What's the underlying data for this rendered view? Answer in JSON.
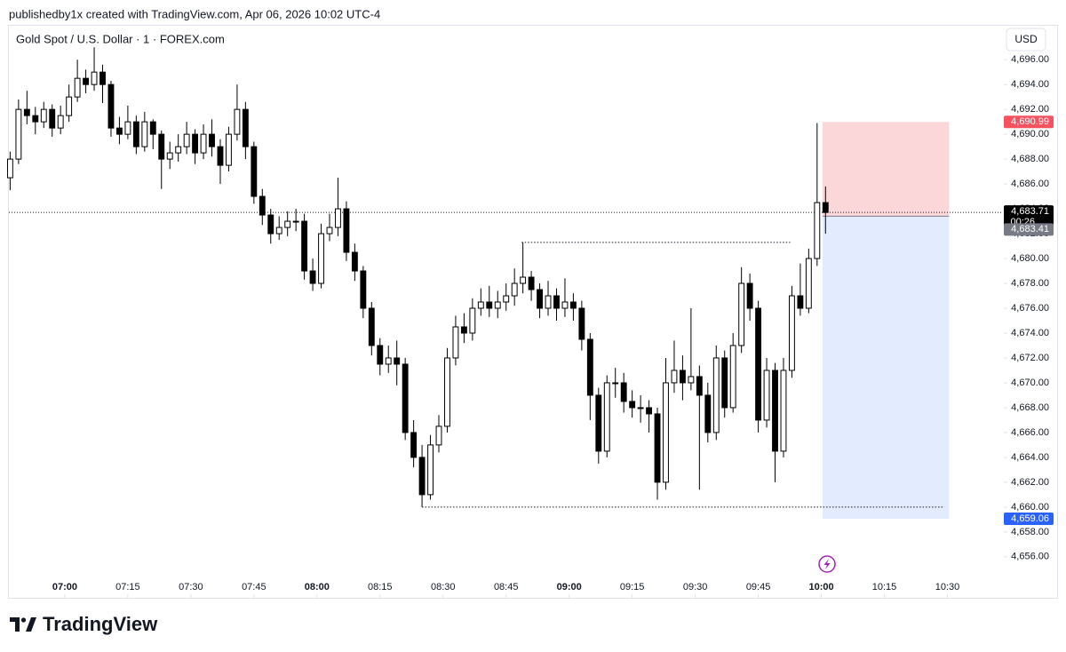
{
  "header": "publishedby1x created with TradingView.com, Apr 06, 2026 10:02 UTC-4",
  "brand": "TradingView",
  "chart_data": {
    "type": "candlestick",
    "title": "Gold Spot / U.S. Dollar · 1 · FOREX.com",
    "currency": "USD",
    "up_color": "#ffffff",
    "down_color": "#000000",
    "wick_color": "#000000",
    "x": [
      407,
      409,
      411,
      413,
      415,
      417,
      419,
      421,
      423,
      425,
      427,
      429,
      431,
      433,
      435,
      437,
      439,
      441,
      443,
      445,
      447,
      449,
      451,
      453,
      455,
      457,
      459,
      461,
      463,
      465,
      467,
      469,
      471,
      473,
      475,
      477,
      479,
      481,
      483,
      485,
      487,
      489,
      491,
      493,
      495,
      497,
      499,
      501,
      503,
      505,
      507,
      509,
      511,
      513,
      515,
      517,
      519,
      521,
      523,
      525,
      527,
      529,
      531,
      533,
      535,
      537,
      539,
      541,
      543,
      545,
      547,
      549,
      551,
      553,
      555,
      557,
      559,
      561,
      563,
      565,
      567,
      569,
      571,
      573,
      575,
      577,
      579,
      581,
      583,
      585,
      587,
      589,
      591,
      593,
      595,
      597,
      599,
      601
    ],
    "open": [
      4686.5,
      4688,
      4692,
      4691.5,
      4691,
      4692,
      4690.5,
      4691.5,
      4693,
      4694.5,
      4694,
      4695,
      4694,
      4690.5,
      4690,
      4691,
      4689,
      4691,
      4690,
      4688,
      4688.5,
      4689,
      4690,
      4688.5,
      4690,
      4689,
      4687.5,
      4690,
      4692,
      4689,
      4685,
      4683.5,
      4682,
      4682.5,
      4683,
      4683,
      4679,
      4678,
      4682,
      4682.5,
      4684,
      4680.5,
      4679,
      4676,
      4673,
      4671.5,
      4672,
      4671.5,
      4666,
      4664,
      4661,
      4665,
      4666.5,
      4672,
      4674.5,
      4674,
      4676,
      4676.5,
      4676,
      4676.5,
      4677,
      4678,
      4678.5,
      4677.5,
      4676,
      4677,
      4676,
      4676.5,
      4676,
      4673.5,
      4669,
      4664.5,
      4670,
      4670,
      4668.5,
      4668,
      4668,
      4667.5,
      4662,
      4670,
      4671,
      4670,
      4670.5,
      4669,
      4666,
      4672,
      4668,
      4673,
      4678,
      4676,
      4667,
      4671,
      4664.5,
      4671,
      4677,
      4676,
      4680,
      4684.5
    ],
    "high": [
      4688.6,
      4692.8,
      4693.5,
      4692.2,
      4692.6,
      4692.4,
      4692.3,
      4694,
      4696,
      4695.2,
      4697,
      4695.6,
      4694.3,
      4691.4,
      4692.3,
      4691.5,
      4691.8,
      4691.2,
      4690.3,
      4689.4,
      4690,
      4691,
      4690.4,
      4690.8,
      4691.2,
      4689.6,
      4690.6,
      4694,
      4692.6,
      4689.4,
      4685.6,
      4684,
      4683.4,
      4683.8,
      4684,
      4683.6,
      4680,
      4682.8,
      4683.6,
      4686.5,
      4684.6,
      4681.2,
      4679.4,
      4676.5,
      4673.6,
      4673,
      4673.4,
      4672,
      4667,
      4665,
      4665.8,
      4667.4,
      4672.8,
      4675.4,
      4675.6,
      4676.8,
      4677.6,
      4677.8,
      4677.4,
      4678,
      4679.2,
      4681.3,
      4679,
      4678,
      4678.2,
      4677.6,
      4678.4,
      4677.2,
      4676.6,
      4674,
      4669.6,
      4670.6,
      4671.2,
      4670.8,
      4669.4,
      4669,
      4668.6,
      4668,
      4672,
      4673.4,
      4672.2,
      4676,
      4671.4,
      4670,
      4673,
      4672.6,
      4674,
      4679.3,
      4678.8,
      4676.6,
      4672,
      4671.6,
      4672,
      4677.8,
      4679.6,
      4680.8,
      4690.9,
      4685.8
    ],
    "low": [
      4685.5,
      4687.6,
      4690.8,
      4690,
      4690.5,
      4689.8,
      4690,
      4691,
      4692.6,
      4693.3,
      4693.5,
      4692.5,
      4689.8,
      4689.2,
      4689.6,
      4688.4,
      4688.6,
      4688.8,
      4685.6,
      4687.2,
      4687.8,
      4688.4,
      4687.6,
      4688,
      4688.2,
      4686,
      4687,
      4689.5,
      4688,
      4684.4,
      4682.7,
      4681.2,
      4681.5,
      4681.8,
      4682.2,
      4678.3,
      4677.4,
      4677.6,
      4681.4,
      4681.8,
      4679.8,
      4678.2,
      4675.2,
      4672.2,
      4670.6,
      4670.8,
      4669.8,
      4665.4,
      4663.2,
      4660,
      4660.6,
      4664.4,
      4666,
      4671.4,
      4673.2,
      4673.4,
      4675.4,
      4675.3,
      4675.2,
      4675.8,
      4676.2,
      4677.2,
      4676.6,
      4675.2,
      4675.4,
      4675,
      4675.3,
      4675,
      4672.6,
      4667,
      4663.5,
      4664,
      4668.8,
      4667.6,
      4667.2,
      4666.8,
      4666,
      4660.6,
      4661.4,
      4669.2,
      4668.6,
      4669.4,
      4661.4,
      4665.2,
      4665.4,
      4667.2,
      4667.6,
      4672.4,
      4675,
      4666,
      4666.4,
      4662,
      4664,
      4670.4,
      4675.4,
      4675.6,
      4679.4,
      4682
    ],
    "close": [
      4688,
      4692,
      4691.5,
      4691,
      4692,
      4690.5,
      4691.5,
      4693,
      4694.5,
      4694,
      4695,
      4694,
      4690.5,
      4690,
      4691,
      4689,
      4691,
      4690,
      4688,
      4688.5,
      4689,
      4690,
      4688.5,
      4690,
      4689,
      4687.5,
      4690,
      4692,
      4689,
      4685,
      4683.5,
      4682,
      4682.5,
      4683,
      4683,
      4679,
      4678,
      4682,
      4682.5,
      4684,
      4680.5,
      4679,
      4676,
      4673,
      4671.5,
      4672,
      4671.5,
      4666,
      4664,
      4661,
      4665,
      4666.5,
      4672,
      4674.5,
      4674,
      4676,
      4676.5,
      4676,
      4676.5,
      4677,
      4678,
      4678.5,
      4677.5,
      4676,
      4677,
      4676,
      4676.5,
      4676,
      4673.5,
      4669,
      4664.5,
      4670,
      4670,
      4668.5,
      4668,
      4668,
      4667.5,
      4662,
      4670,
      4671,
      4670,
      4670.5,
      4669,
      4666,
      4672,
      4668,
      4673,
      4678,
      4676,
      4667,
      4671,
      4664.5,
      4671,
      4677,
      4676,
      4680,
      4684.5,
      4683.71
    ],
    "xlim": [
      406.7,
      643.0
    ],
    "ylim": [
      4652.7,
      4698.8
    ],
    "xticks": [
      {
        "value": 420,
        "label": "07:00"
      },
      {
        "value": 435,
        "label": "07:15"
      },
      {
        "value": 450,
        "label": "07:30"
      },
      {
        "value": 465,
        "label": "07:45"
      },
      {
        "value": 480,
        "label": "08:00"
      },
      {
        "value": 495,
        "label": "08:15"
      },
      {
        "value": 510,
        "label": "08:30"
      },
      {
        "value": 525,
        "label": "08:45"
      },
      {
        "value": 540,
        "label": "09:00"
      },
      {
        "value": 555,
        "label": "09:15"
      },
      {
        "value": 570,
        "label": "09:30"
      },
      {
        "value": 585,
        "label": "09:45"
      },
      {
        "value": 600,
        "label": "10:00"
      },
      {
        "value": 615,
        "label": "10:15"
      },
      {
        "value": 630,
        "label": "10:30"
      }
    ],
    "yticks": [
      {
        "value": 4656,
        "label": "4,656.00"
      },
      {
        "value": 4658,
        "label": "4,658.00"
      },
      {
        "value": 4660,
        "label": "4,660.00"
      },
      {
        "value": 4662,
        "label": "4,662.00"
      },
      {
        "value": 4664,
        "label": "4,664.00"
      },
      {
        "value": 4666,
        "label": "4,666.00"
      },
      {
        "value": 4668,
        "label": "4,668.00"
      },
      {
        "value": 4670,
        "label": "4,670.00"
      },
      {
        "value": 4672,
        "label": "4,672.00"
      },
      {
        "value": 4674,
        "label": "4,674.00"
      },
      {
        "value": 4676,
        "label": "4,676.00"
      },
      {
        "value": 4678,
        "label": "4,678.00"
      },
      {
        "value": 4680,
        "label": "4,680.00"
      },
      {
        "value": 4682,
        "label": "4,682.00"
      },
      {
        "value": 4684,
        "label": "4,684.00"
      },
      {
        "value": 4686,
        "label": "4,686.00"
      },
      {
        "value": 4688,
        "label": "4,688.00"
      },
      {
        "value": 4690,
        "label": "4,690.00"
      },
      {
        "value": 4692,
        "label": "4,692.00"
      },
      {
        "value": 4694,
        "label": "4,694.00"
      },
      {
        "value": 4696,
        "label": "4,696.00"
      }
    ],
    "levels": [
      {
        "value": 4681.3,
        "x": [
          528.7,
          592.6
        ]
      },
      {
        "value": 4660,
        "x": [
          505,
          629.3
        ]
      }
    ],
    "current_price": {
      "value": 4683.71,
      "label": "4,683.71",
      "countdown": "00:26",
      "color": "#000000"
    },
    "position": {
      "start": 600.3,
      "end": 630.4,
      "stop": {
        "value": 4690.99,
        "label": "4,690.99",
        "color": "#f7525f"
      },
      "entry": {
        "value": 4683.41,
        "label": "4,683.41",
        "color": "#787b86"
      },
      "target": {
        "value": 4659.06,
        "label": "4,659.06",
        "color": "#2962ff"
      }
    }
  }
}
